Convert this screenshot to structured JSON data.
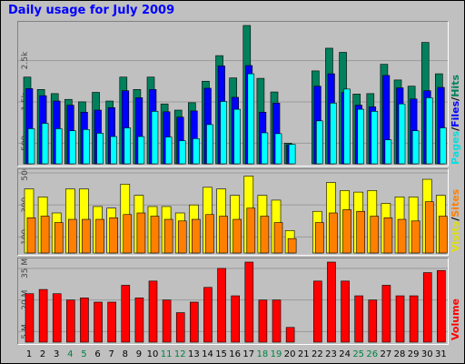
{
  "title": "Daily usage for July 2009",
  "colors": {
    "hits": "#00805c",
    "files": "#0000ff",
    "pages": "#00ffff",
    "visits": "#ffff00",
    "sites": "#ff8000",
    "volume": "#ff0000",
    "weekday": "#000000",
    "weekend": "#008040"
  },
  "legend": {
    "pages": "Pages",
    "files": "Files",
    "hits": "Hits",
    "visits": "Visits",
    "sites": "Sites",
    "volume": "Volume",
    "sep": "/"
  },
  "chart_data": [
    {
      "type": "bar",
      "name": "hits_files_pages",
      "categories": [
        "1",
        "2",
        "3",
        "4",
        "5",
        "6",
        "7",
        "8",
        "9",
        "10",
        "11",
        "12",
        "13",
        "14",
        "15",
        "16",
        "17",
        "18",
        "19",
        "20",
        "21",
        "22",
        "23",
        "24",
        "25",
        "26",
        "27",
        "28",
        "29",
        "30",
        "31"
      ],
      "weekend": [
        "4",
        "5",
        "11",
        "12",
        "18",
        "19",
        "25",
        "26"
      ],
      "ylim": [
        0,
        3350
      ],
      "yticks": [
        {
          "value": 500,
          "label": "500"
        },
        {
          "value": 1500,
          "label": "1.5k"
        },
        {
          "value": 2500,
          "label": "2.5k"
        }
      ],
      "series": [
        {
          "name": "Hits",
          "values": [
            2100,
            1800,
            1700,
            1560,
            1500,
            1730,
            1520,
            2100,
            1800,
            2100,
            1450,
            1300,
            1480,
            2000,
            2620,
            2080,
            3350,
            2070,
            1740,
            500,
            0,
            2250,
            2800,
            2700,
            1690,
            1700,
            2410,
            2030,
            1880,
            2940,
            2180
          ]
        },
        {
          "name": "Files",
          "values": [
            1820,
            1650,
            1520,
            1420,
            1250,
            1300,
            1360,
            1770,
            1600,
            1800,
            1260,
            1130,
            1280,
            1830,
            2370,
            1610,
            2380,
            1250,
            1470,
            460,
            0,
            1880,
            2180,
            1730,
            1420,
            1380,
            2140,
            1840,
            1570,
            1770,
            1850
          ]
        },
        {
          "name": "Pages",
          "values": [
            850,
            980,
            850,
            800,
            830,
            740,
            660,
            870,
            660,
            1270,
            650,
            560,
            610,
            950,
            1510,
            1320,
            2180,
            750,
            730,
            470,
            0,
            1040,
            1470,
            1810,
            1320,
            1270,
            580,
            1450,
            800,
            1600,
            870
          ]
        }
      ]
    },
    {
      "type": "bar",
      "name": "visits_sites",
      "categories": [
        "1",
        "2",
        "3",
        "4",
        "5",
        "6",
        "7",
        "8",
        "9",
        "10",
        "11",
        "12",
        "13",
        "14",
        "15",
        "16",
        "17",
        "18",
        "19",
        "20",
        "21",
        "22",
        "23",
        "24",
        "25",
        "26",
        "27",
        "28",
        "29",
        "30",
        "31"
      ],
      "ylim": [
        0,
        500
      ],
      "yticks": [
        {
          "value": 100,
          "label": "100"
        },
        {
          "value": 300,
          "label": "300"
        },
        {
          "value": 500,
          "label": "500"
        }
      ],
      "series": [
        {
          "name": "Visits",
          "values": [
            400,
            350,
            250,
            400,
            400,
            290,
            280,
            430,
            360,
            290,
            290,
            250,
            300,
            410,
            400,
            360,
            480,
            360,
            330,
            140,
            0,
            260,
            440,
            390,
            380,
            390,
            310,
            350,
            350,
            460,
            360
          ]
        },
        {
          "name": "Sites",
          "values": [
            220,
            230,
            190,
            210,
            210,
            210,
            220,
            240,
            250,
            230,
            210,
            200,
            210,
            240,
            230,
            210,
            280,
            230,
            190,
            90,
            0,
            190,
            250,
            270,
            260,
            230,
            220,
            210,
            200,
            320,
            230
          ]
        }
      ]
    },
    {
      "type": "bar",
      "name": "volume",
      "categories": [
        "1",
        "2",
        "3",
        "4",
        "5",
        "6",
        "7",
        "8",
        "9",
        "10",
        "11",
        "12",
        "13",
        "14",
        "15",
        "16",
        "17",
        "18",
        "19",
        "20",
        "21",
        "22",
        "23",
        "24",
        "25",
        "26",
        "27",
        "28",
        "29",
        "30",
        "31"
      ],
      "ylim": [
        0,
        38
      ],
      "yticks": [
        {
          "value": 5,
          "label": "5 M"
        },
        {
          "value": 20,
          "label": "20 M"
        },
        {
          "value": 35,
          "label": "35 M"
        }
      ],
      "series": [
        {
          "name": "Volume",
          "unit": "MB",
          "values": [
            23,
            25,
            23,
            20,
            21,
            19,
            19,
            27,
            21,
            29,
            20,
            14,
            19,
            26,
            35,
            22,
            38,
            20,
            20,
            7,
            0,
            29,
            38,
            29,
            22,
            20,
            27,
            22,
            22,
            33,
            34
          ]
        }
      ]
    }
  ]
}
